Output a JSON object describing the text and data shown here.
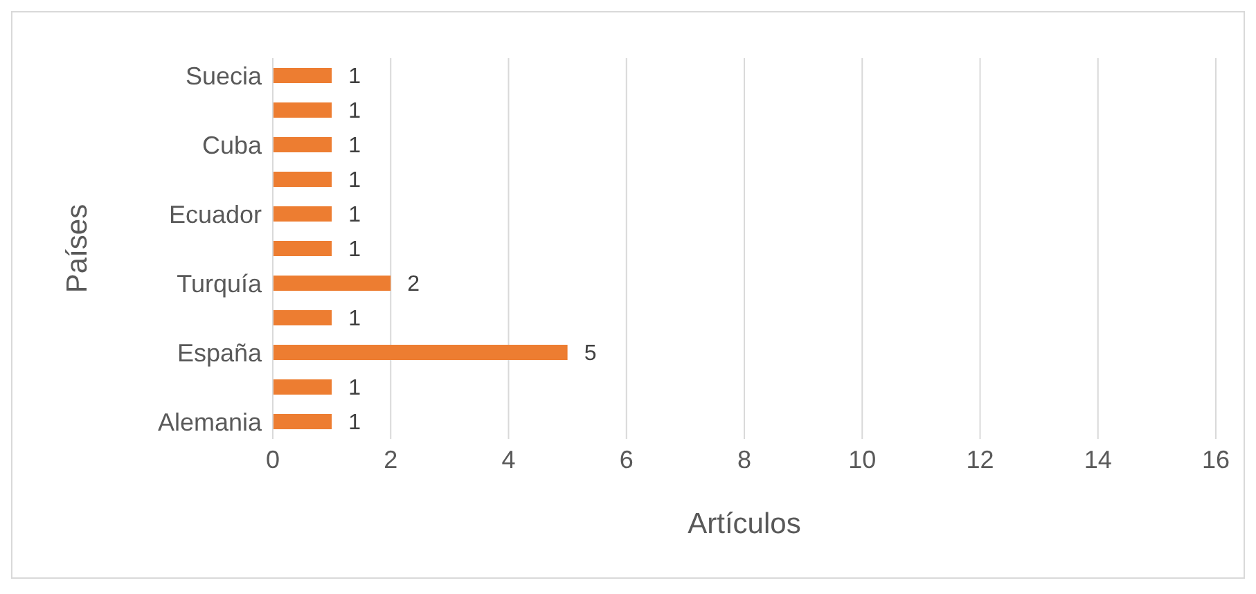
{
  "chart_data": {
    "type": "bar",
    "orientation": "horizontal",
    "xlabel": "Artículos",
    "ylabel": "Países",
    "categories": [
      "Suecia",
      null,
      "Cuba",
      null,
      "Ecuador",
      null,
      "Turquía",
      null,
      "España",
      null,
      "Alemania"
    ],
    "values": [
      1,
      1,
      1,
      1,
      1,
      1,
      2,
      1,
      5,
      1,
      1
    ],
    "color": "#ed7d31",
    "xlim": [
      0,
      16
    ],
    "xticks": [
      0,
      2,
      4,
      6,
      8,
      10,
      12,
      14,
      16
    ],
    "grid": "x",
    "data_labels": true
  }
}
